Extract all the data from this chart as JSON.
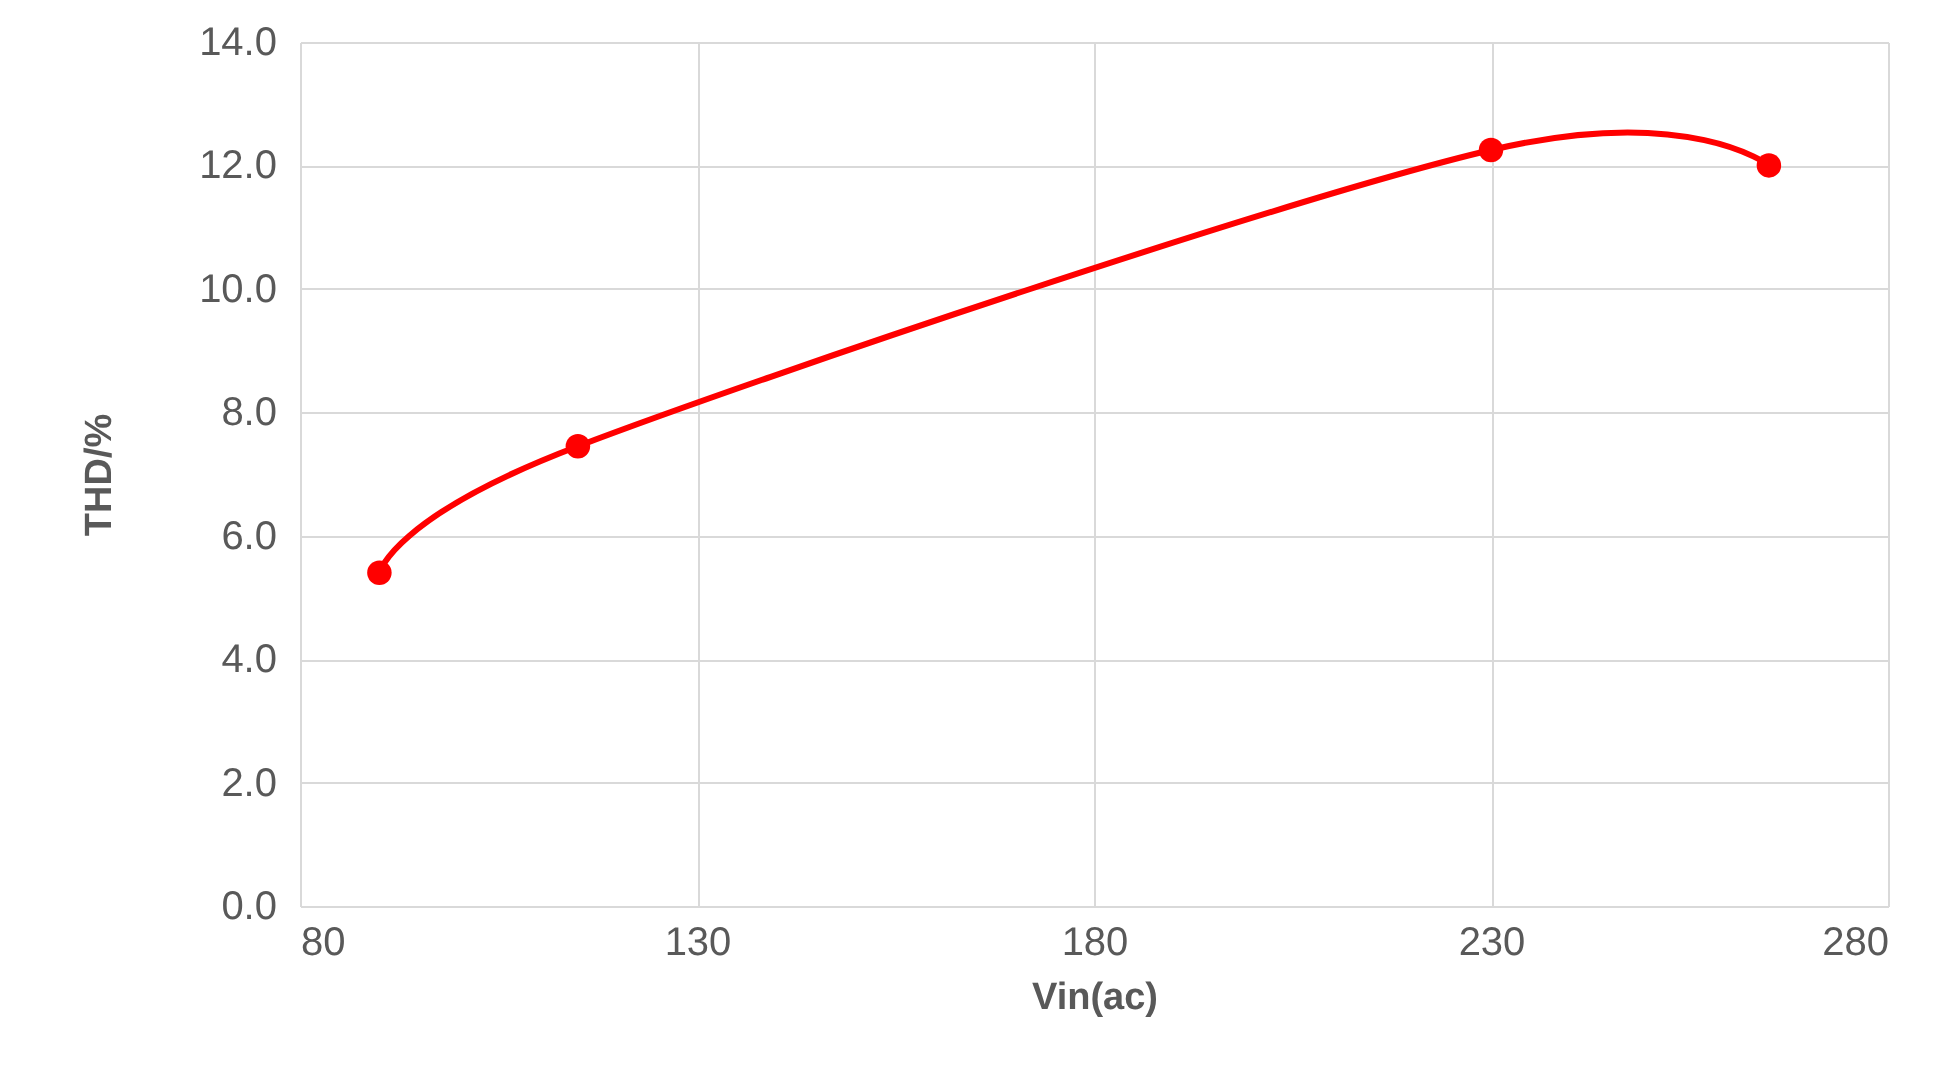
{
  "chart_data": {
    "type": "line",
    "xlabel": "Vin(ac)",
    "ylabel": "THD/%",
    "x": [
      90,
      115,
      230,
      265
    ],
    "series": [
      {
        "color": "#ff0000",
        "values": [
          5.4,
          7.45,
          12.25,
          12.0
        ]
      }
    ],
    "xlim": [
      80,
      280
    ],
    "xticks": [
      80,
      130,
      180,
      230,
      280
    ],
    "ylim": [
      0,
      14
    ],
    "yticks": [
      {
        "value": 0,
        "label": "0.0"
      },
      {
        "value": 2,
        "label": "2.0"
      },
      {
        "value": 4,
        "label": "4.0"
      },
      {
        "value": 6,
        "label": "6.0"
      },
      {
        "value": 8,
        "label": "8.0"
      },
      {
        "value": 10,
        "label": "10.0"
      },
      {
        "value": 12,
        "label": "12.0"
      },
      {
        "value": 14,
        "label": "14.0"
      }
    ],
    "grid": true,
    "marker": "circle",
    "line_style": "solid"
  }
}
